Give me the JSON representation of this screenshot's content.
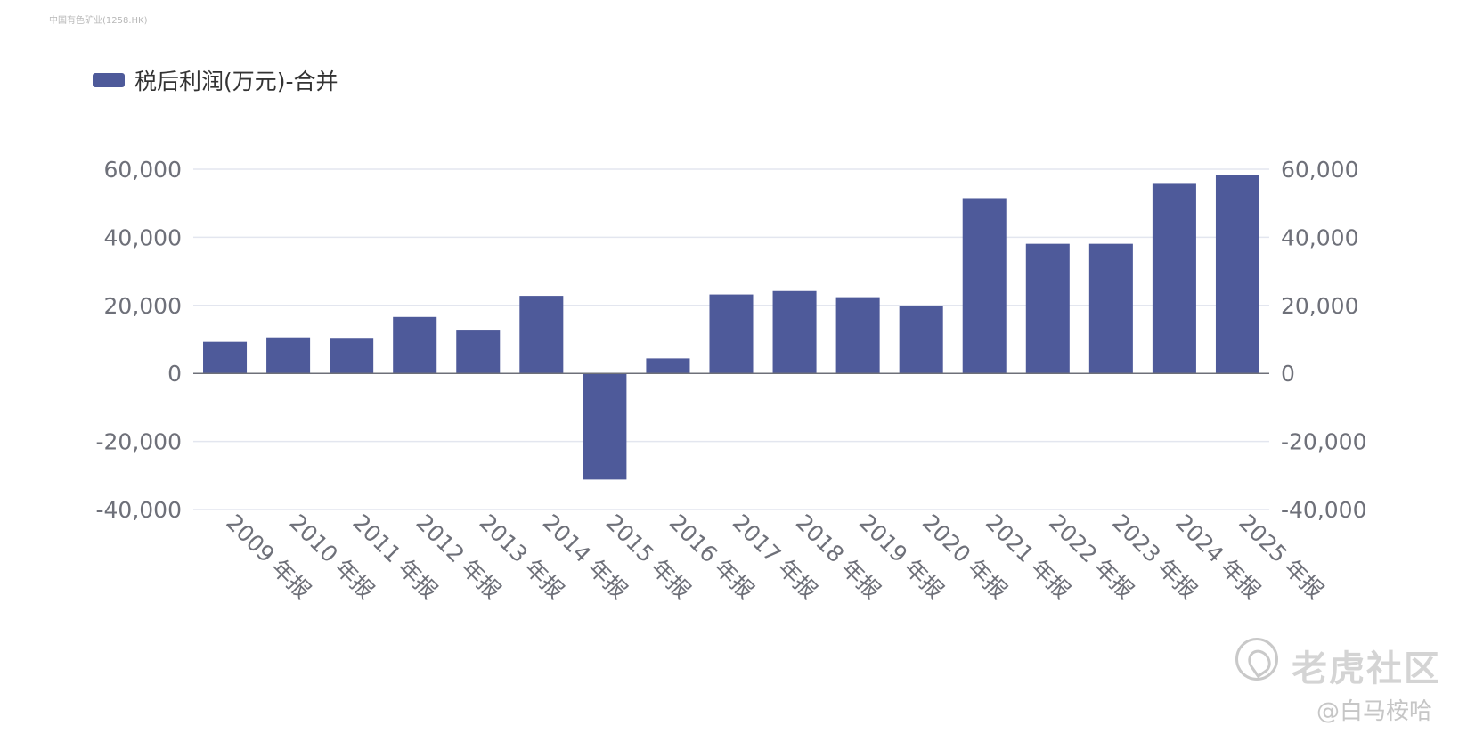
{
  "source_label": "中国有色矿业(1258.HK)",
  "watermark": {
    "brand": "老虎社区",
    "user": "@白马桉哈"
  },
  "colors": {
    "bar": "#4e5a9a",
    "grid": "#e3e6ef",
    "axis": "#6e7079",
    "zero_line": "#6e7079"
  },
  "chart_data": {
    "type": "bar",
    "title": "",
    "legend": {
      "position": "top-left",
      "entries": [
        "税后利润(万元)-合并"
      ]
    },
    "categories": [
      "2009 年报",
      "2010 年报",
      "2011 年报",
      "2012 年报",
      "2013 年报",
      "2014 年报",
      "2015 年报",
      "2016 年报",
      "2017 年报",
      "2018 年报",
      "2019 年报",
      "2020 年报",
      "2021 年报",
      "2022 年报",
      "2023 年报",
      "2024 年报",
      "2025 年报"
    ],
    "series": [
      {
        "name": "税后利润(万元)-合并",
        "values": [
          9300,
          10600,
          10200,
          16600,
          12600,
          22800,
          -31200,
          4400,
          23200,
          24200,
          22400,
          19700,
          51500,
          38100,
          38100,
          55700,
          58300
        ]
      }
    ],
    "y_axis_left": {
      "min": -40000,
      "max": 60000,
      "ticks": [
        60000,
        40000,
        20000,
        0,
        -20000,
        -40000
      ],
      "tick_labels": [
        "60,000",
        "40,000",
        "20,000",
        "0",
        "-20,000",
        "-40,000"
      ]
    },
    "y_axis_right": {
      "min": -40000,
      "max": 60000,
      "ticks": [
        60000,
        40000,
        20000,
        0,
        -20000,
        -40000
      ],
      "tick_labels": [
        "60,000",
        "40,000",
        "20,000",
        "0",
        "-20,000",
        "-40,000"
      ]
    },
    "xlabel": "",
    "ylabel": "",
    "grid": true
  }
}
